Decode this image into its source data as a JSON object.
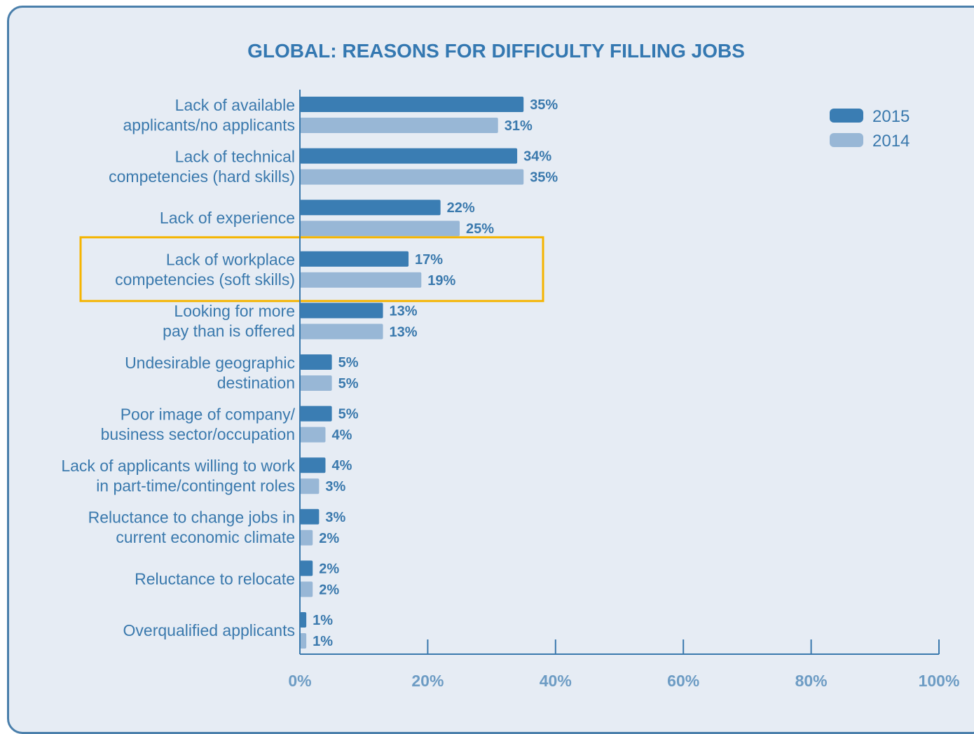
{
  "chart_data": {
    "type": "bar",
    "orientation": "horizontal",
    "title": "GLOBAL: REASONS FOR DIFFICULTY FILLING JOBS",
    "categories": [
      [
        "Lack of available",
        "applicants/no applicants"
      ],
      [
        "Lack of technical",
        "competencies (hard skills)"
      ],
      [
        "Lack of experience"
      ],
      [
        "Lack of workplace",
        "competencies (soft skills)"
      ],
      [
        "Looking for more",
        "pay than is offered"
      ],
      [
        "Undesirable geographic",
        "destination"
      ],
      [
        "Poor image of company/",
        "business sector/occupation"
      ],
      [
        "Lack of applicants willing to work",
        "in part-time/contingent roles"
      ],
      [
        "Reluctance to change jobs in",
        "current economic climate"
      ],
      [
        "Reluctance to relocate"
      ],
      [
        "Overqualified applicants"
      ]
    ],
    "series": [
      {
        "name": "2015",
        "color": "#3a7db3",
        "values": [
          35,
          34,
          22,
          17,
          13,
          5,
          5,
          4,
          3,
          2,
          1
        ]
      },
      {
        "name": "2014",
        "color": "#98b7d6",
        "values": [
          31,
          35,
          25,
          19,
          13,
          5,
          4,
          3,
          2,
          2,
          1
        ]
      }
    ],
    "value_suffix": "%",
    "xlim": [
      0,
      100
    ],
    "xticks": [
      "0%",
      "20%",
      "40%",
      "60%",
      "80%",
      "100%"
    ],
    "legend_position": "top-right",
    "highlight_category_index": 3,
    "highlight_color": "#f5b400",
    "grid": false
  }
}
